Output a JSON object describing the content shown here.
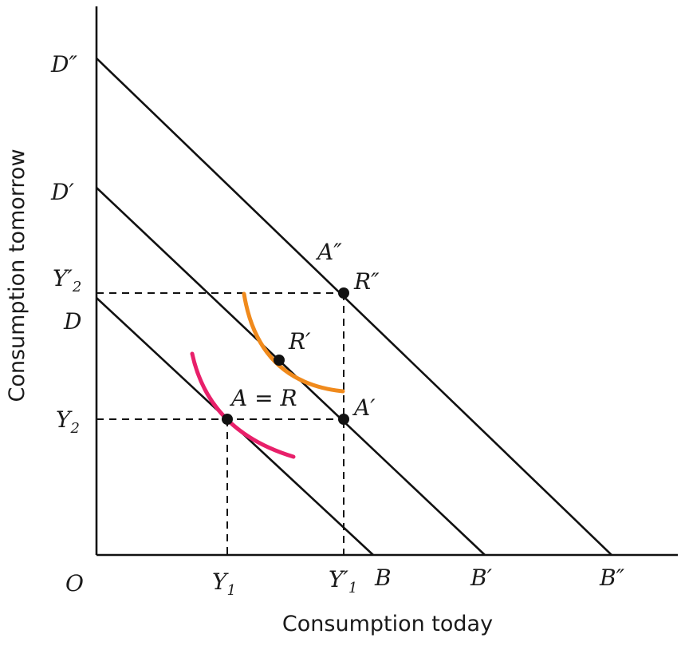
{
  "axes": {
    "x_title": "Consumption today",
    "y_title": "Consumption tomorrow",
    "origin": "O"
  },
  "budget_lines": [
    {
      "top": "D",
      "bottom": "B"
    },
    {
      "top": "D′",
      "bottom": "B′"
    },
    {
      "top": "D″",
      "bottom": "B″"
    }
  ],
  "x_ticks": {
    "y1": "Y",
    "y1_sub": "1",
    "y1p": "Y′",
    "y1p_sub": "1"
  },
  "y_ticks": {
    "y2": "Y",
    "y2_sub": "2",
    "y2p": "Y′",
    "y2p_sub": "2"
  },
  "points": {
    "a_r": "A = R",
    "a_prime": "A′",
    "r_prime": "R′",
    "a_dprime": "A″",
    "r_dprime": "R″"
  },
  "colors": {
    "indifference_1": "#e8206a",
    "indifference_2": "#f08a1c",
    "lines": "#111111"
  }
}
